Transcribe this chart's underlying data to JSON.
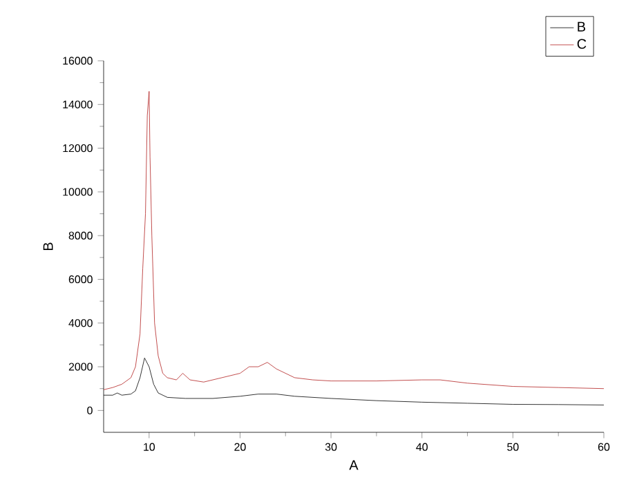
{
  "chart_data": {
    "type": "line",
    "xlabel": "A",
    "ylabel": "B",
    "xlim": [
      5,
      60
    ],
    "ylim": [
      -1000,
      16000
    ],
    "xticks": [
      10,
      20,
      30,
      40,
      50,
      60
    ],
    "yticks": [
      0,
      2000,
      4000,
      6000,
      8000,
      10000,
      12000,
      14000,
      16000
    ],
    "legend": "top right",
    "grid": false,
    "marker": "none",
    "line_style": "solid",
    "series": [
      {
        "name": "B",
        "color": "#000000",
        "x": [
          5,
          6,
          6.5,
          7,
          8,
          8.5,
          9,
          9.5,
          10,
          10.5,
          11,
          12,
          14,
          17,
          20,
          22,
          24,
          26,
          30,
          35,
          40,
          45,
          50,
          55,
          60
        ],
        "values": [
          700,
          700,
          800,
          700,
          750,
          900,
          1500,
          2400,
          2000,
          1200,
          800,
          600,
          550,
          550,
          650,
          750,
          750,
          650,
          550,
          450,
          380,
          330,
          280,
          270,
          250
        ]
      },
      {
        "name": "C",
        "color": "#b22222",
        "x": [
          5,
          6,
          7,
          8,
          8.5,
          9,
          9.3,
          9.6,
          9.8,
          10,
          10.1,
          10.3,
          10.6,
          11,
          11.5,
          12,
          13,
          13.7,
          14.5,
          16,
          18,
          20,
          21,
          22,
          23,
          24,
          25,
          26,
          28,
          30,
          35,
          40,
          42,
          45,
          50,
          55,
          60
        ],
        "values": [
          950,
          1050,
          1200,
          1500,
          2000,
          3500,
          6500,
          9000,
          13500,
          14600,
          11600,
          8000,
          4000,
          2500,
          1700,
          1500,
          1400,
          1700,
          1400,
          1300,
          1500,
          1700,
          2000,
          2000,
          2200,
          1900,
          1700,
          1500,
          1400,
          1350,
          1350,
          1400,
          1400,
          1250,
          1100,
          1050,
          1000
        ]
      }
    ]
  }
}
